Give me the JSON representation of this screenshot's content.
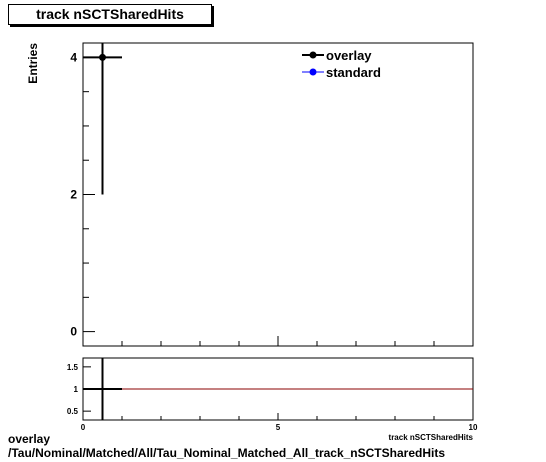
{
  "title": "track nSCTSharedHits",
  "footer": {
    "line1": "overlay",
    "line2": "/Tau/Nominal/Matched/All/Tau_Nominal_Matched_All_track_nSCTSharedHits"
  },
  "colors": {
    "overlay": "#000000",
    "standard": "#0000ff",
    "ratio_line": "#8b0000"
  },
  "chart_data": [
    {
      "type": "scatter",
      "title": "track nSCTSharedHits",
      "xlabel": "track nSCTSharedHits",
      "ylabel": "Entries",
      "xlim": [
        0,
        10
      ],
      "ylim": [
        -0.21,
        4.21
      ],
      "yticks": [
        0,
        2,
        4
      ],
      "legend_position": "top-right",
      "series": [
        {
          "name": "overlay",
          "points": [
            {
              "x": 0.5,
              "y": 4,
              "xerr": 0.5,
              "yerr": 2
            }
          ]
        },
        {
          "name": "standard",
          "points": []
        }
      ]
    },
    {
      "type": "line",
      "title": "",
      "xlabel": "track nSCTSharedHits",
      "ylabel": "",
      "xlim": [
        0,
        10
      ],
      "ylim": [
        0.3,
        1.7
      ],
      "xticks": [
        0,
        5,
        10
      ],
      "yticks": [
        0.5,
        1,
        1.5
      ],
      "reference_line": 1,
      "points": [
        {
          "x": 0.5,
          "y": 1,
          "xerr": 0.5,
          "yerr": 1.2
        }
      ]
    }
  ]
}
